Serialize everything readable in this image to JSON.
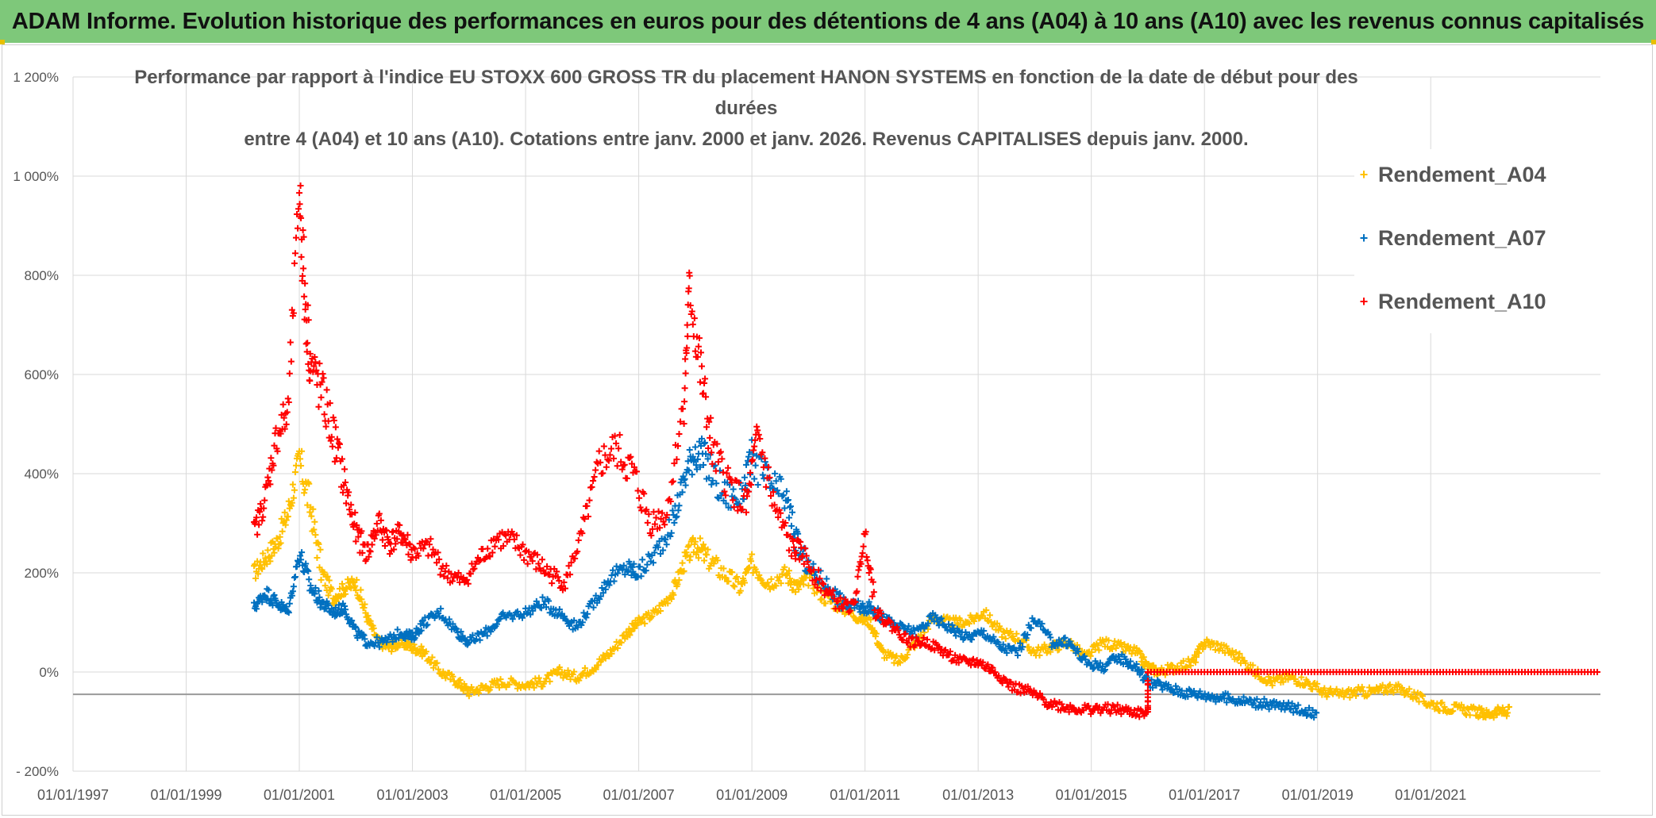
{
  "banner": {
    "title": "ADAM Informe. Evolution historique des performances en euros pour des détentions de 4 ans (A04) à 10 ans (A10) avec les revenus connus capitalisés"
  },
  "chart_data": {
    "type": "scatter",
    "title_line1": "Performance par rapport à l'indice EU STOXX 600 GROSS TR  du placement HANON SYSTEMS en fonction de la date de début pour des durées",
    "title_line2": "entre 4 (A04) et 10 ans (A10). Cotations entre janv. 2000 et janv. 2026. Revenus CAPITALISES depuis janv. 2000.",
    "xlabel": "",
    "ylabel": "",
    "x_range": [
      1997.0,
      2024.0
    ],
    "ylim": [
      -200,
      1200
    ],
    "y_ticks": [
      -200,
      0,
      200,
      400,
      600,
      800,
      1000,
      1200
    ],
    "y_tick_labels": [
      "- 200%",
      "0%",
      "200%",
      "400%",
      "600%",
      "800%",
      "1 000%",
      "1 200%"
    ],
    "x_ticks": [
      1997,
      1999,
      2001,
      2003,
      2005,
      2007,
      2009,
      2011,
      2013,
      2015,
      2017,
      2019,
      2021
    ],
    "x_tick_labels": [
      "01/01/1997",
      "01/01/1999",
      "01/01/2001",
      "01/01/2003",
      "01/01/2005",
      "01/01/2007",
      "01/01/2009",
      "01/01/2011",
      "01/01/2013",
      "01/01/2015",
      "01/01/2017",
      "01/01/2019",
      "01/01/2021"
    ],
    "baseline_y": -45,
    "grid": true,
    "legend_position": "top-right",
    "series": [
      {
        "name": "Rendement_A04",
        "color": "#ffc000",
        "x": [
          2000.2,
          2000.4,
          2000.6,
          2000.8,
          2001.0,
          2001.2,
          2001.4,
          2001.6,
          2001.8,
          2002.0,
          2002.2,
          2002.4,
          2002.6,
          2002.8,
          2003.0,
          2003.2,
          2003.5,
          2003.8,
          2004.0,
          2004.3,
          2004.6,
          2005.0,
          2005.3,
          2005.6,
          2005.9,
          2006.2,
          2006.5,
          2006.8,
          2007.0,
          2007.3,
          2007.6,
          2007.8,
          2008.0,
          2008.2,
          2008.5,
          2008.8,
          2009.0,
          2009.3,
          2009.6,
          2009.8,
          2010.0,
          2010.3,
          2010.6,
          2010.9,
          2011.1,
          2011.3,
          2011.6,
          2011.9,
          2012.2,
          2012.5,
          2012.8,
          2013.1,
          2013.4,
          2013.7,
          2014.0,
          2014.3,
          2014.6,
          2014.9,
          2015.2,
          2015.5,
          2015.8,
          2016.0,
          2016.2,
          2016.5,
          2016.8,
          2017.0,
          2017.3,
          2017.6,
          2017.9,
          2018.2,
          2018.5,
          2018.8,
          2019.1,
          2019.4,
          2019.7,
          2020.0,
          2020.3,
          2020.6,
          2020.9,
          2021.2,
          2021.5,
          2021.8,
          2022.0,
          2022.2,
          2022.4
        ],
        "values": [
          200,
          230,
          260,
          320,
          430,
          330,
          200,
          150,
          170,
          180,
          110,
          60,
          50,
          60,
          50,
          40,
          0,
          -20,
          -40,
          -30,
          -20,
          -25,
          -20,
          0,
          -10,
          10,
          40,
          80,
          100,
          120,
          160,
          220,
          260,
          230,
          200,
          170,
          220,
          180,
          200,
          170,
          190,
          150,
          130,
          110,
          100,
          40,
          20,
          60,
          110,
          100,
          100,
          120,
          80,
          70,
          40,
          50,
          60,
          30,
          60,
          50,
          40,
          10,
          0,
          10,
          20,
          60,
          50,
          30,
          0,
          -20,
          -10,
          -20,
          -40,
          -45,
          -40,
          -40,
          -30,
          -40,
          -60,
          -70,
          -75,
          -80,
          -85,
          -80,
          -80
        ]
      },
      {
        "name": "Rendement_A07",
        "color": "#0070c0",
        "x": [
          2000.2,
          2000.4,
          2000.6,
          2000.8,
          2001.0,
          2001.2,
          2001.4,
          2001.6,
          2001.8,
          2002.0,
          2002.2,
          2002.5,
          2002.8,
          2003.0,
          2003.2,
          2003.5,
          2003.8,
          2004.0,
          2004.3,
          2004.6,
          2005.0,
          2005.3,
          2005.6,
          2005.9,
          2006.2,
          2006.5,
          2006.8,
          2007.0,
          2007.3,
          2007.6,
          2007.8,
          2008.0,
          2008.2,
          2008.5,
          2008.8,
          2009.0,
          2009.3,
          2009.6,
          2009.8,
          2010.0,
          2010.3,
          2010.6,
          2010.9,
          2011.1,
          2011.3,
          2011.6,
          2011.9,
          2012.2,
          2012.5,
          2012.8,
          2013.1,
          2013.4,
          2013.7,
          2014.0,
          2014.3,
          2014.6,
          2014.9,
          2015.2,
          2015.5,
          2015.8,
          2016.0,
          2016.3,
          2016.6,
          2016.9,
          2017.2,
          2017.5,
          2017.8,
          2018.1,
          2018.4,
          2018.7,
          2019.0
        ],
        "values": [
          130,
          160,
          140,
          120,
          240,
          170,
          140,
          120,
          130,
          80,
          60,
          60,
          80,
          70,
          100,
          120,
          80,
          60,
          80,
          110,
          120,
          140,
          120,
          90,
          140,
          190,
          210,
          200,
          240,
          300,
          390,
          450,
          420,
          360,
          350,
          430,
          380,
          350,
          260,
          210,
          180,
          140,
          130,
          130,
          110,
          90,
          80,
          110,
          90,
          70,
          80,
          50,
          40,
          110,
          60,
          60,
          20,
          10,
          30,
          10,
          -20,
          -30,
          -40,
          -45,
          -50,
          -55,
          -60,
          -65,
          -70,
          -75,
          -85
        ]
      },
      {
        "name": "Rendement_A10",
        "color": "#ff0000",
        "x": [
          2000.2,
          2000.4,
          2000.6,
          2000.8,
          2001.0,
          2001.1,
          2001.2,
          2001.4,
          2001.6,
          2001.8,
          2002.0,
          2002.2,
          2002.4,
          2002.6,
          2002.8,
          2003.0,
          2003.3,
          2003.6,
          2003.9,
          2004.2,
          2004.5,
          2004.8,
          2005.1,
          2005.4,
          2005.7,
          2006.0,
          2006.3,
          2006.6,
          2006.9,
          2007.2,
          2007.5,
          2007.8,
          2007.9,
          2008.1,
          2008.3,
          2008.6,
          2008.9,
          2009.1,
          2009.4,
          2009.7,
          2009.9,
          2010.2,
          2010.5,
          2010.8,
          2011.0,
          2011.2,
          2011.5,
          2011.8,
          2012.1,
          2012.4,
          2012.7,
          2013.0,
          2013.3,
          2013.6,
          2013.9,
          2014.2,
          2014.5,
          2014.8,
          2015.1,
          2015.4,
          2015.7,
          2016.0,
          2016.0,
          2017.0,
          2018.0,
          2019.0,
          2020.0,
          2021.0,
          2022.0,
          2023.0,
          2024.0
        ],
        "values": [
          280,
          350,
          480,
          520,
          980,
          750,
          620,
          560,
          480,
          380,
          280,
          240,
          300,
          260,
          280,
          240,
          250,
          200,
          180,
          230,
          270,
          260,
          230,
          200,
          180,
          280,
          420,
          450,
          400,
          300,
          320,
          550,
          780,
          600,
          440,
          380,
          330,
          480,
          330,
          250,
          240,
          180,
          140,
          130,
          280,
          120,
          90,
          60,
          60,
          40,
          20,
          20,
          0,
          -30,
          -40,
          -60,
          -70,
          -75,
          -75,
          -75,
          -80,
          -85,
          0,
          0,
          0,
          0,
          0,
          0,
          0,
          0,
          0
        ]
      }
    ]
  }
}
